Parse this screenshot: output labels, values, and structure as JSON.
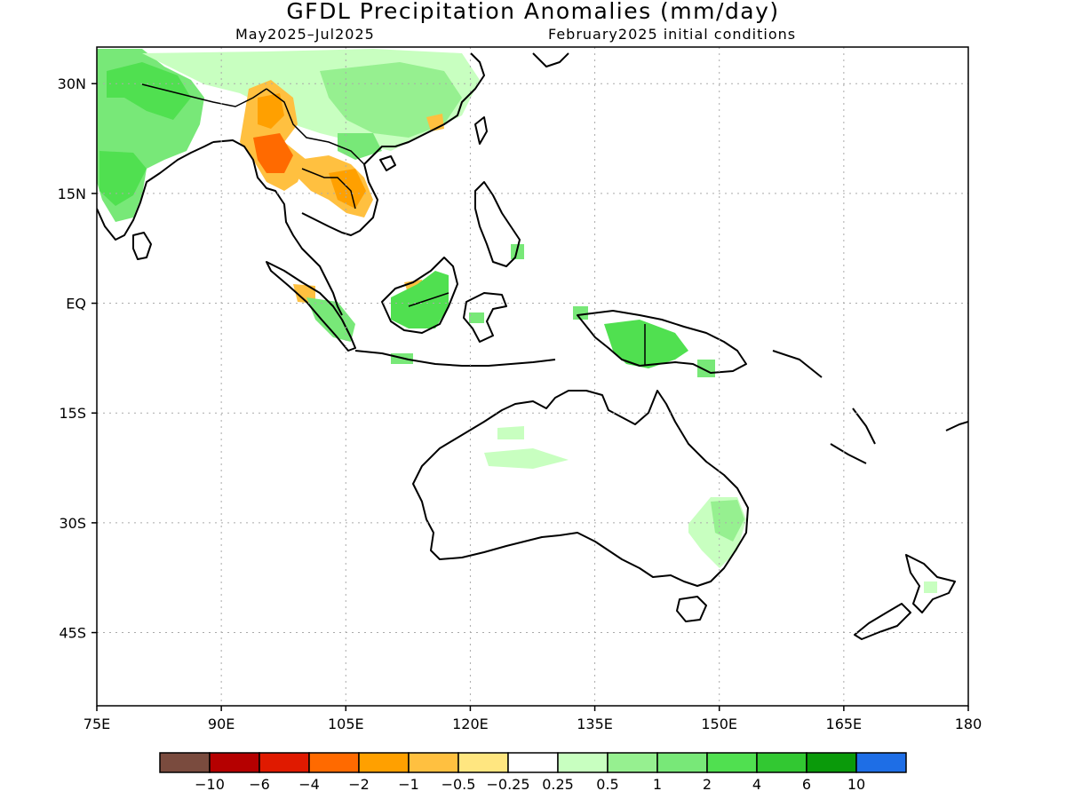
{
  "title": "GFDL Precipitation Anomalies (mm/day)",
  "subtitle_left": "May2025–Jul2025",
  "subtitle_right": "February2025 initial conditions",
  "axes": {
    "lon_range": [
      75,
      180
    ],
    "lat_range": [
      -55,
      35
    ],
    "x_ticks": [
      "75E",
      "90E",
      "105E",
      "120E",
      "135E",
      "150E",
      "165E",
      "180"
    ],
    "y_ticks": [
      "30N",
      "15N",
      "EQ",
      "15S",
      "30S",
      "45S"
    ],
    "grid": true,
    "grid_style": "dotted"
  },
  "colorbar": {
    "colors": [
      "#7a4b3e",
      "#b50000",
      "#e01a00",
      "#ff6a00",
      "#ffa000",
      "#ffc040",
      "#ffe680",
      "#ffffff",
      "#c8ffc0",
      "#96f090",
      "#78e878",
      "#50e050",
      "#32c832",
      "#0a9a0a",
      "#1e6ee6"
    ],
    "labels": [
      "−10",
      "−6",
      "−4",
      "−2",
      "−1",
      "−0.5",
      "−0.25",
      "0.25",
      "0.5",
      "1",
      "2",
      "4",
      "6",
      "10"
    ]
  },
  "anomalies": [
    {
      "region": "NE India / Himalaya foothills",
      "value": 1,
      "color": "#78e878"
    },
    {
      "region": "Central India",
      "value": 2,
      "color": "#50e050"
    },
    {
      "region": "Tibetan Plateau / South China",
      "value": 0.5,
      "color": "#c8ffc0"
    },
    {
      "region": "Myanmar",
      "value": -2,
      "color": "#ff6a00"
    },
    {
      "region": "Thailand / Laos",
      "value": -1,
      "color": "#ffa000"
    },
    {
      "region": "Borneo",
      "value": 2,
      "color": "#50e050"
    },
    {
      "region": "Sumatra",
      "value": 1,
      "color": "#78e878"
    },
    {
      "region": "New Guinea",
      "value": 2,
      "color": "#50e050"
    },
    {
      "region": "Northern Australia",
      "value": 0.5,
      "color": "#c8ffc0"
    },
    {
      "region": "Eastern Australia",
      "value": 1,
      "color": "#96f090"
    }
  ]
}
